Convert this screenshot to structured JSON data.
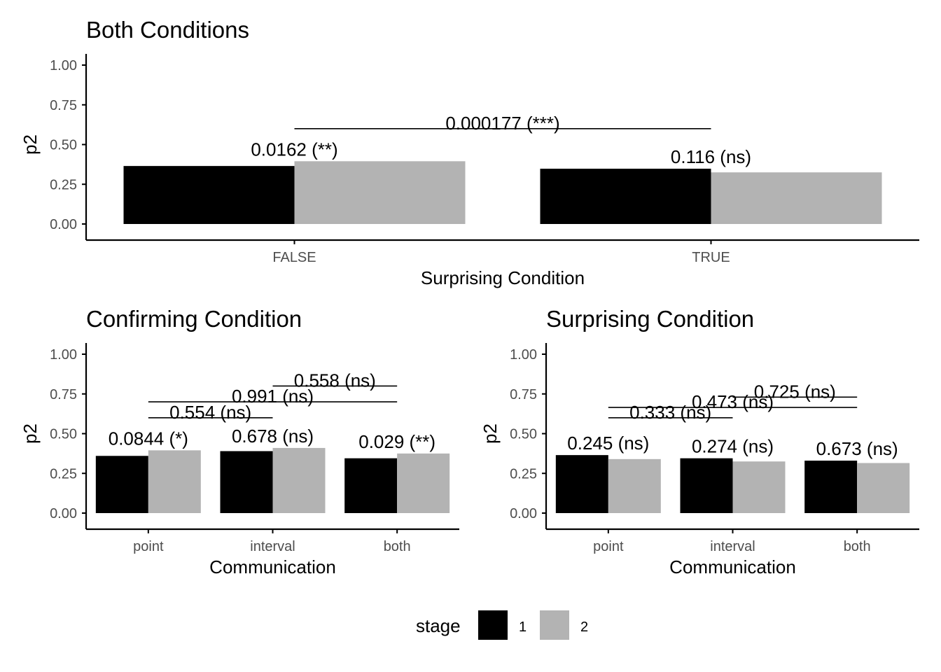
{
  "colors": {
    "stage_1": "#000000",
    "stage_2": "#b3b3b3",
    "axis": "#000000"
  },
  "legend": {
    "title": "stage",
    "items": [
      "1",
      "2"
    ]
  },
  "chart_data": [
    {
      "type": "bar",
      "title": "Both Conditions",
      "xlabel": "Surprising Condition",
      "ylabel": "p2",
      "ylim": [
        0,
        1
      ],
      "yticks": [
        "0.00",
        "0.25",
        "0.50",
        "0.75",
        "1.00"
      ],
      "categories": [
        "FALSE",
        "TRUE"
      ],
      "series": [
        {
          "name": "1",
          "values": [
            0.365,
            0.348
          ]
        },
        {
          "name": "2",
          "values": [
            0.395,
            0.325
          ]
        }
      ],
      "bar_labels": [
        "0.0162 (**)",
        "0.116 (ns)"
      ],
      "comparisons": [
        {
          "from": "FALSE",
          "to": "TRUE",
          "y": 0.6,
          "label": "0.000177 (***)"
        }
      ]
    },
    {
      "type": "bar",
      "title": "Confirming Condition",
      "xlabel": "Communication",
      "ylabel": "p2",
      "ylim": [
        0,
        1
      ],
      "yticks": [
        "0.00",
        "0.25",
        "0.50",
        "0.75",
        "1.00"
      ],
      "categories": [
        "point",
        "interval",
        "both"
      ],
      "series": [
        {
          "name": "1",
          "values": [
            0.36,
            0.39,
            0.345
          ]
        },
        {
          "name": "2",
          "values": [
            0.395,
            0.41,
            0.375
          ]
        }
      ],
      "bar_labels": [
        "0.0844 (*)",
        "0.678 (ns)",
        "0.029 (**)"
      ],
      "comparisons": [
        {
          "from": "point",
          "to": "interval",
          "y": 0.6,
          "label": "0.554 (ns)"
        },
        {
          "from": "point",
          "to": "both",
          "y": 0.7,
          "label": "0.991 (ns)"
        },
        {
          "from": "interval",
          "to": "both",
          "y": 0.8,
          "label": "0.558 (ns)"
        }
      ]
    },
    {
      "type": "bar",
      "title": "Surprising Condition",
      "xlabel": "Communication",
      "ylabel": "p2",
      "ylim": [
        0,
        1
      ],
      "yticks": [
        "0.00",
        "0.25",
        "0.50",
        "0.75",
        "1.00"
      ],
      "categories": [
        "point",
        "interval",
        "both"
      ],
      "series": [
        {
          "name": "1",
          "values": [
            0.365,
            0.345,
            0.33
          ]
        },
        {
          "name": "2",
          "values": [
            0.34,
            0.325,
            0.315
          ]
        }
      ],
      "bar_labels": [
        "0.245 (ns)",
        "0.274 (ns)",
        "0.673 (ns)"
      ],
      "comparisons": [
        {
          "from": "point",
          "to": "interval",
          "y": 0.6,
          "label": "0.333 (ns)"
        },
        {
          "from": "point",
          "to": "both",
          "y": 0.665,
          "label": "0.473 (ns)"
        },
        {
          "from": "interval",
          "to": "both",
          "y": 0.73,
          "label": "0.725 (ns)"
        }
      ]
    }
  ]
}
